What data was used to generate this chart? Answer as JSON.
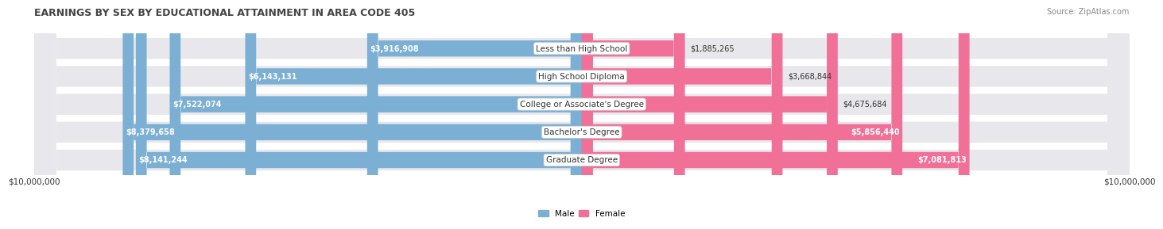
{
  "title": "EARNINGS BY SEX BY EDUCATIONAL ATTAINMENT IN AREA CODE 405",
  "source": "Source: ZipAtlas.com",
  "categories": [
    "Less than High School",
    "High School Diploma",
    "College or Associate's Degree",
    "Bachelor's Degree",
    "Graduate Degree"
  ],
  "male_values": [
    3916908,
    6143131,
    7522074,
    8379658,
    8141244
  ],
  "female_values": [
    1885265,
    3668844,
    4675684,
    5856440,
    7081813
  ],
  "male_color": "#7bafd4",
  "female_color": "#f07098",
  "male_label": "Male",
  "female_label": "Female",
  "max_val": 10000000,
  "x_axis_label_left": "$10,000,000",
  "x_axis_label_right": "$10,000,000",
  "background_color": "#ffffff",
  "row_bg_color": "#e8e8ec",
  "title_fontsize": 9,
  "source_fontsize": 7,
  "label_fontsize": 7.5,
  "value_fontsize": 7,
  "tick_fontsize": 7.5
}
